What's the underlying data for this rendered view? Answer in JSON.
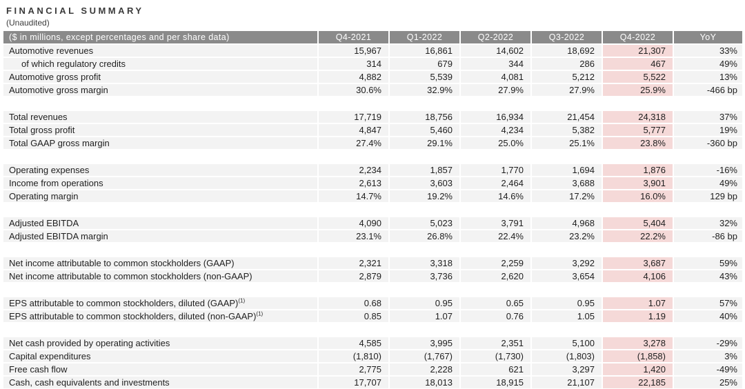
{
  "page": {
    "title": "FINANCIAL SUMMARY",
    "subtitle": "(Unaudited)"
  },
  "colors": {
    "header_bg": "#8a8a8a",
    "header_text": "#ffffff",
    "row_bg": "#f3f3f3",
    "highlight_bg": "#f5d9d8",
    "text": "#1e1e1e"
  },
  "table": {
    "header": {
      "label": "($ in millions, except percentages and per share data)",
      "columns": [
        "Q4-2021",
        "Q1-2022",
        "Q2-2022",
        "Q3-2022",
        "Q4-2022",
        "YoY"
      ],
      "highlight_column": "Q4-2022"
    },
    "sections": [
      {
        "rows": [
          {
            "label": "Automotive revenues",
            "values": [
              "15,967",
              "16,861",
              "14,602",
              "18,692",
              "21,307",
              "33%"
            ]
          },
          {
            "label": "of which regulatory credits",
            "indent": true,
            "values": [
              "314",
              "679",
              "344",
              "286",
              "467",
              "49%"
            ]
          },
          {
            "label": "Automotive gross profit",
            "values": [
              "4,882",
              "5,539",
              "4,081",
              "5,212",
              "5,522",
              "13%"
            ]
          },
          {
            "label": "Automotive gross margin",
            "values": [
              "30.6%",
              "32.9%",
              "27.9%",
              "27.9%",
              "25.9%",
              "-466 bp"
            ]
          }
        ]
      },
      {
        "rows": [
          {
            "label": "Total revenues",
            "values": [
              "17,719",
              "18,756",
              "16,934",
              "21,454",
              "24,318",
              "37%"
            ]
          },
          {
            "label": "Total gross profit",
            "values": [
              "4,847",
              "5,460",
              "4,234",
              "5,382",
              "5,777",
              "19%"
            ]
          },
          {
            "label": "Total GAAP gross margin",
            "values": [
              "27.4%",
              "29.1%",
              "25.0%",
              "25.1%",
              "23.8%",
              "-360 bp"
            ]
          }
        ]
      },
      {
        "rows": [
          {
            "label": "Operating expenses",
            "values": [
              "2,234",
              "1,857",
              "1,770",
              "1,694",
              "1,876",
              "-16%"
            ]
          },
          {
            "label": "Income from operations",
            "values": [
              "2,613",
              "3,603",
              "2,464",
              "3,688",
              "3,901",
              "49%"
            ]
          },
          {
            "label": "Operating margin",
            "values": [
              "14.7%",
              "19.2%",
              "14.6%",
              "17.2%",
              "16.0%",
              "129 bp"
            ]
          }
        ]
      },
      {
        "rows": [
          {
            "label": "Adjusted EBITDA",
            "values": [
              "4,090",
              "5,023",
              "3,791",
              "4,968",
              "5,404",
              "32%"
            ]
          },
          {
            "label": "Adjusted EBITDA margin",
            "values": [
              "23.1%",
              "26.8%",
              "22.4%",
              "23.2%",
              "22.2%",
              "-86 bp"
            ]
          }
        ]
      },
      {
        "rows": [
          {
            "label": "Net income attributable to common stockholders (GAAP)",
            "values": [
              "2,321",
              "3,318",
              "2,259",
              "3,292",
              "3,687",
              "59%"
            ]
          },
          {
            "label": "Net income attributable to common stockholders (non-GAAP)",
            "values": [
              "2,879",
              "3,736",
              "2,620",
              "3,654",
              "4,106",
              "43%"
            ]
          }
        ]
      },
      {
        "rows": [
          {
            "label": "EPS attributable to common stockholders, diluted (GAAP)",
            "sup": "(1)",
            "values": [
              "0.68",
              "0.95",
              "0.65",
              "0.95",
              "1.07",
              "57%"
            ]
          },
          {
            "label": "EPS attributable to common stockholders, diluted (non-GAAP)",
            "sup": "(1)",
            "values": [
              "0.85",
              "1.07",
              "0.76",
              "1.05",
              "1.19",
              "40%"
            ]
          }
        ]
      },
      {
        "rows": [
          {
            "label": "Net cash provided by operating activities",
            "values": [
              "4,585",
              "3,995",
              "2,351",
              "5,100",
              "3,278",
              "-29%"
            ]
          },
          {
            "label": "Capital expenditures",
            "values": [
              "(1,810)",
              "(1,767)",
              "(1,730)",
              "(1,803)",
              "(1,858)",
              "3%"
            ]
          },
          {
            "label": "Free cash flow",
            "values": [
              "2,775",
              "2,228",
              "621",
              "3,297",
              "1,420",
              "-49%"
            ]
          },
          {
            "label": "Cash, cash equivalents and investments",
            "values": [
              "17,707",
              "18,013",
              "18,915",
              "21,107",
              "22,185",
              "25%"
            ]
          }
        ]
      }
    ]
  }
}
